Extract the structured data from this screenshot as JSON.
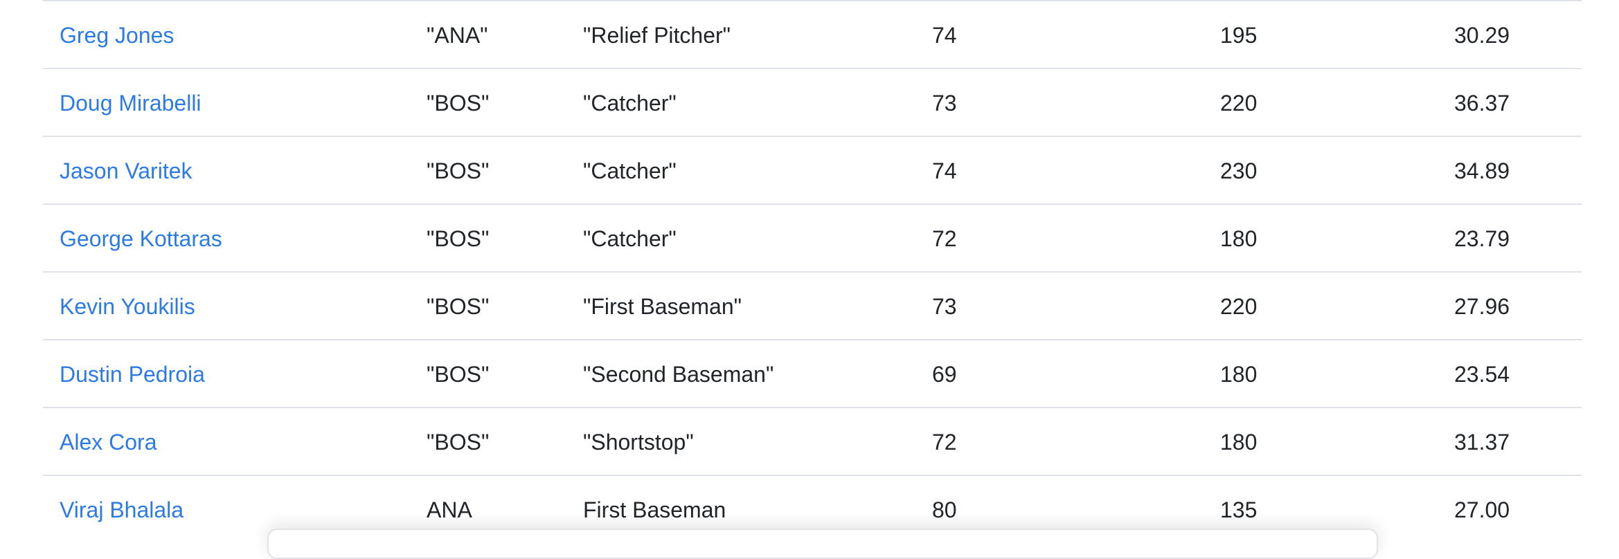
{
  "rows": [
    {
      "name": "Greg Jones",
      "team": "\"ANA\"",
      "position": "\"Relief Pitcher\"",
      "height": "74",
      "weight": "195",
      "age": "30.29"
    },
    {
      "name": "Doug Mirabelli",
      "team": "\"BOS\"",
      "position": "\"Catcher\"",
      "height": "73",
      "weight": "220",
      "age": "36.37"
    },
    {
      "name": "Jason Varitek",
      "team": "\"BOS\"",
      "position": "\"Catcher\"",
      "height": "74",
      "weight": "230",
      "age": "34.89"
    },
    {
      "name": "George Kottaras",
      "team": "\"BOS\"",
      "position": "\"Catcher\"",
      "height": "72",
      "weight": "180",
      "age": "23.79"
    },
    {
      "name": "Kevin Youkilis",
      "team": "\"BOS\"",
      "position": "\"First Baseman\"",
      "height": "73",
      "weight": "220",
      "age": "27.96"
    },
    {
      "name": "Dustin Pedroia",
      "team": "\"BOS\"",
      "position": "\"Second Baseman\"",
      "height": "69",
      "weight": "180",
      "age": "23.54"
    },
    {
      "name": "Alex Cora",
      "team": "\"BOS\"",
      "position": "\"Shortstop\"",
      "height": "72",
      "weight": "180",
      "age": "31.37"
    },
    {
      "name": "Viraj Bhalala",
      "team": "ANA",
      "position": "First Baseman",
      "height": "80",
      "weight": "135",
      "age": "27.00"
    }
  ]
}
